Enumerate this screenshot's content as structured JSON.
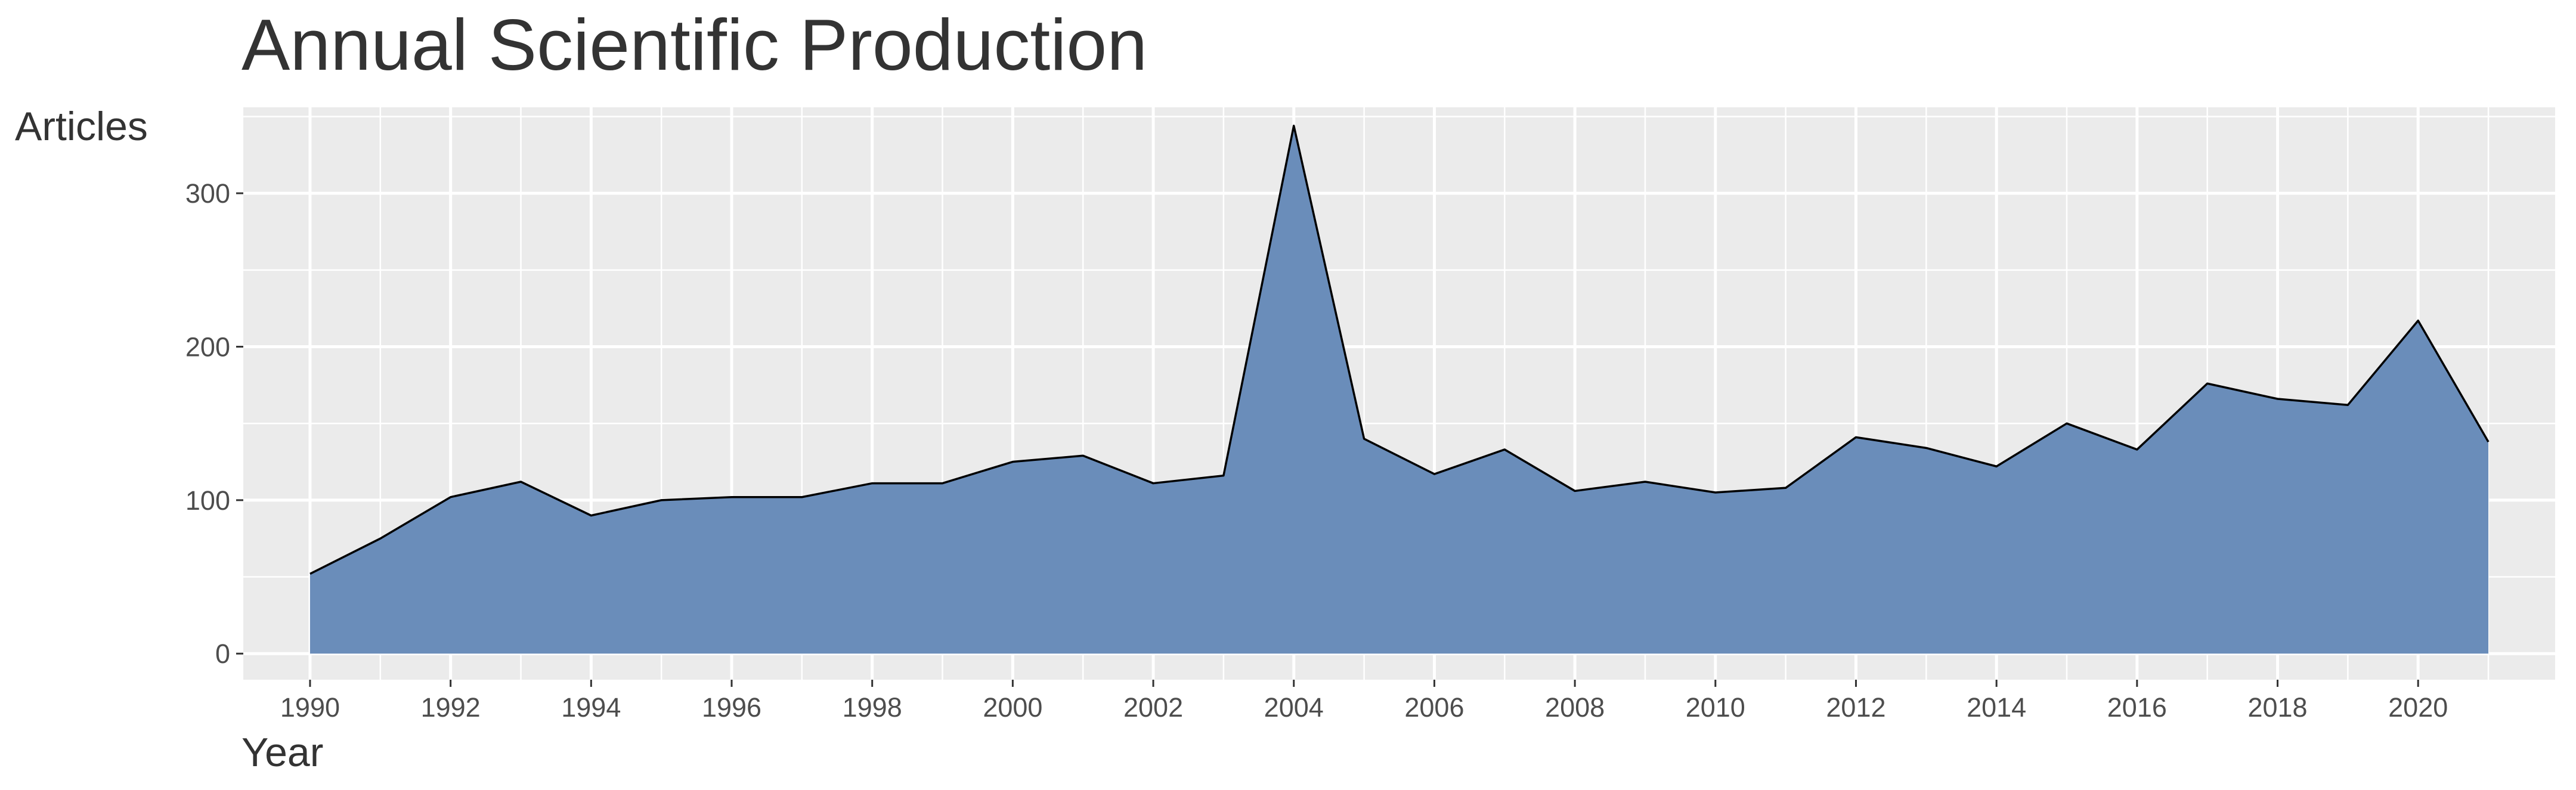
{
  "chart_data": {
    "type": "area",
    "title": "Annual Scientific Production",
    "xlabel": "Year",
    "ylabel": "Articles",
    "x": [
      1990,
      1991,
      1992,
      1993,
      1994,
      1995,
      1996,
      1997,
      1998,
      1999,
      2000,
      2001,
      2002,
      2003,
      2004,
      2005,
      2006,
      2007,
      2008,
      2009,
      2010,
      2011,
      2012,
      2013,
      2014,
      2015,
      2016,
      2017,
      2018,
      2019,
      2020,
      2021
    ],
    "series": [
      {
        "values": [
          52,
          75,
          102,
          112,
          90,
          100,
          102,
          102,
          111,
          111,
          125,
          129,
          111,
          116,
          344,
          140,
          117,
          133,
          106,
          112,
          105,
          108,
          141,
          134,
          122,
          150,
          133,
          176,
          166,
          162,
          217,
          138
        ]
      }
    ],
    "xlim": [
      1989.05,
      2021.95
    ],
    "ylim": [
      -17,
      356
    ],
    "x_ticks": [
      "1990",
      "1992",
      "1994",
      "1996",
      "1998",
      "2000",
      "2002",
      "2004",
      "2006",
      "2008",
      "2010",
      "2012",
      "2014",
      "2016",
      "2018",
      "2020"
    ],
    "y_ticks": [
      "0",
      "100",
      "200",
      "300"
    ],
    "grid": true,
    "legend": "none",
    "colors": {
      "fill": "#6a8dba",
      "line": "#000000",
      "panel": "#ebebeb",
      "grid": "#ffffff",
      "text": "#333333",
      "tick_text": "#4d4d4d"
    }
  }
}
